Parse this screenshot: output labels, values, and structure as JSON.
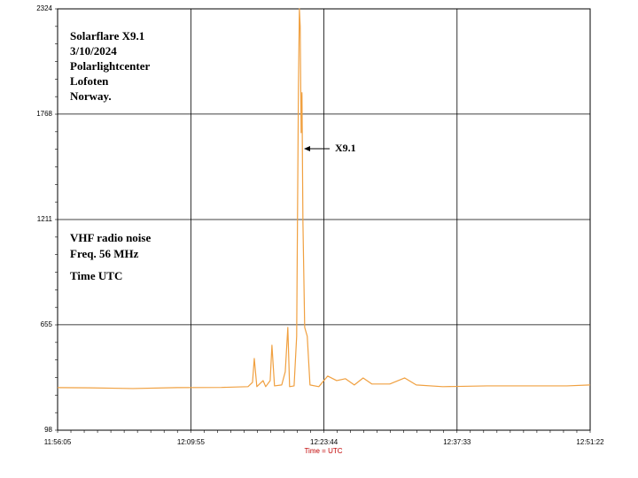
{
  "chart_data": {
    "type": "line",
    "x_label": "Time = UTC",
    "annotations": [
      "Solarflare X9.1",
      "3/10/2024",
      "Polarlightcenter",
      "Lofoten",
      "Norway.",
      "VHF radio noise",
      "Freq. 56 MHz",
      "Time UTC",
      "X9.1"
    ],
    "xlim": [
      "11:56:05",
      "12:51:22"
    ],
    "xticks": [
      "11:56:05",
      "12:09:55",
      "12:23:44",
      "12:37:33",
      "12:51:22"
    ],
    "ylim": [
      98,
      2324
    ],
    "yticks": [
      98,
      655,
      1211,
      1768,
      2324
    ],
    "grid": true,
    "x": [
      "11:56:05",
      "11:59:18",
      "12:03:54",
      "12:08:30",
      "12:13:05",
      "12:15:51",
      "12:16:19",
      "12:16:30",
      "12:16:46",
      "12:17:25",
      "12:17:41",
      "12:18:09",
      "12:18:20",
      "12:18:36",
      "12:19:21",
      "12:19:43",
      "12:19:59",
      "12:20:10",
      "12:20:38",
      "12:20:54",
      "12:21:05",
      "12:21:11",
      "12:21:16",
      "12:21:22",
      "12:21:27",
      "12:21:33",
      "12:21:44",
      "12:22:00",
      "12:22:17",
      "12:23:12",
      "12:24:07",
      "12:25:03",
      "12:25:58",
      "12:26:53",
      "12:27:48",
      "12:28:43",
      "12:30:34",
      "12:32:07",
      "12:33:19",
      "12:36:04",
      "12:40:40",
      "12:45:16",
      "12:48:57",
      "12:51:22"
    ],
    "series": [
      {
        "name": "VHF radio noise",
        "color": "#f0a040",
        "values": [
          323,
          322,
          318,
          323,
          324,
          328,
          351,
          477,
          328,
          360,
          328,
          360,
          547,
          332,
          337,
          407,
          641,
          328,
          332,
          594,
          1904,
          2324,
          2232,
          1670,
          1881,
          1202,
          641,
          594,
          337,
          328,
          384,
          360,
          370,
          337,
          374,
          342,
          342,
          374,
          337,
          328,
          332,
          332,
          332,
          337
        ]
      }
    ]
  }
}
